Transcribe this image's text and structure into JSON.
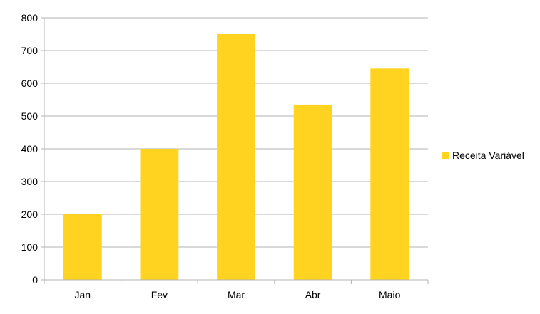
{
  "chart_data": {
    "type": "bar",
    "title": "",
    "xlabel": "",
    "ylabel": "",
    "categories": [
      "Jan",
      "Fev",
      "Mar",
      "Abr",
      "Maio"
    ],
    "series": [
      {
        "name": "Receita Variável",
        "values": [
          200,
          400,
          750,
          535,
          645
        ],
        "color": "#FFD320"
      }
    ],
    "ylim": [
      0,
      800
    ],
    "yticks": [
      0,
      100,
      200,
      300,
      400,
      500,
      600,
      700,
      800
    ],
    "ytick_labels": [
      "0",
      "100",
      "200",
      "300",
      "400",
      "500",
      "600",
      "700",
      "800"
    ],
    "grid": true,
    "grid_color": "#b3b3b3",
    "legend": "right"
  }
}
